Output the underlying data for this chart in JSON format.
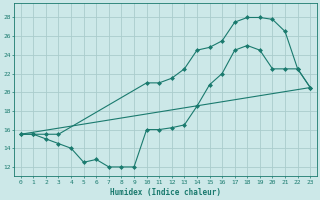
{
  "xlabel": "Humidex (Indice chaleur)",
  "xlim": [
    -0.5,
    23.5
  ],
  "ylim": [
    11,
    29.5
  ],
  "yticks": [
    12,
    14,
    16,
    18,
    20,
    22,
    24,
    26,
    28
  ],
  "xticks": [
    0,
    1,
    2,
    3,
    4,
    5,
    6,
    7,
    8,
    9,
    10,
    11,
    12,
    13,
    14,
    15,
    16,
    17,
    18,
    19,
    20,
    21,
    22,
    23
  ],
  "bg_color": "#cce8e8",
  "line_color": "#1a7a6e",
  "grid_color": "#aacccc",
  "curve1_x": [
    0,
    1,
    2,
    3,
    10,
    11,
    12,
    13,
    14,
    15,
    16,
    17,
    18,
    19,
    20,
    21,
    22,
    23
  ],
  "curve1_y": [
    15.5,
    15.5,
    15.5,
    15.5,
    21.0,
    21.0,
    21.5,
    22.5,
    24.5,
    24.8,
    25.5,
    27.5,
    28.0,
    28.0,
    27.8,
    26.5,
    22.5,
    20.5
  ],
  "curve2_x": [
    0,
    1,
    2,
    3,
    4,
    5,
    6,
    7,
    8,
    9,
    10,
    11,
    12,
    13,
    14,
    15,
    16,
    17,
    18,
    19,
    20,
    21,
    22,
    23
  ],
  "curve2_y": [
    15.5,
    15.5,
    15.0,
    14.5,
    14.0,
    12.5,
    12.8,
    12.0,
    12.0,
    12.0,
    16.0,
    16.0,
    16.2,
    16.5,
    18.5,
    20.8,
    22.0,
    24.5,
    25.0,
    24.5,
    22.5,
    22.5,
    22.5,
    20.5
  ],
  "curve3_x": [
    0,
    23
  ],
  "curve3_y": [
    15.5,
    20.5
  ],
  "marker": "D",
  "markersize": 2.5
}
